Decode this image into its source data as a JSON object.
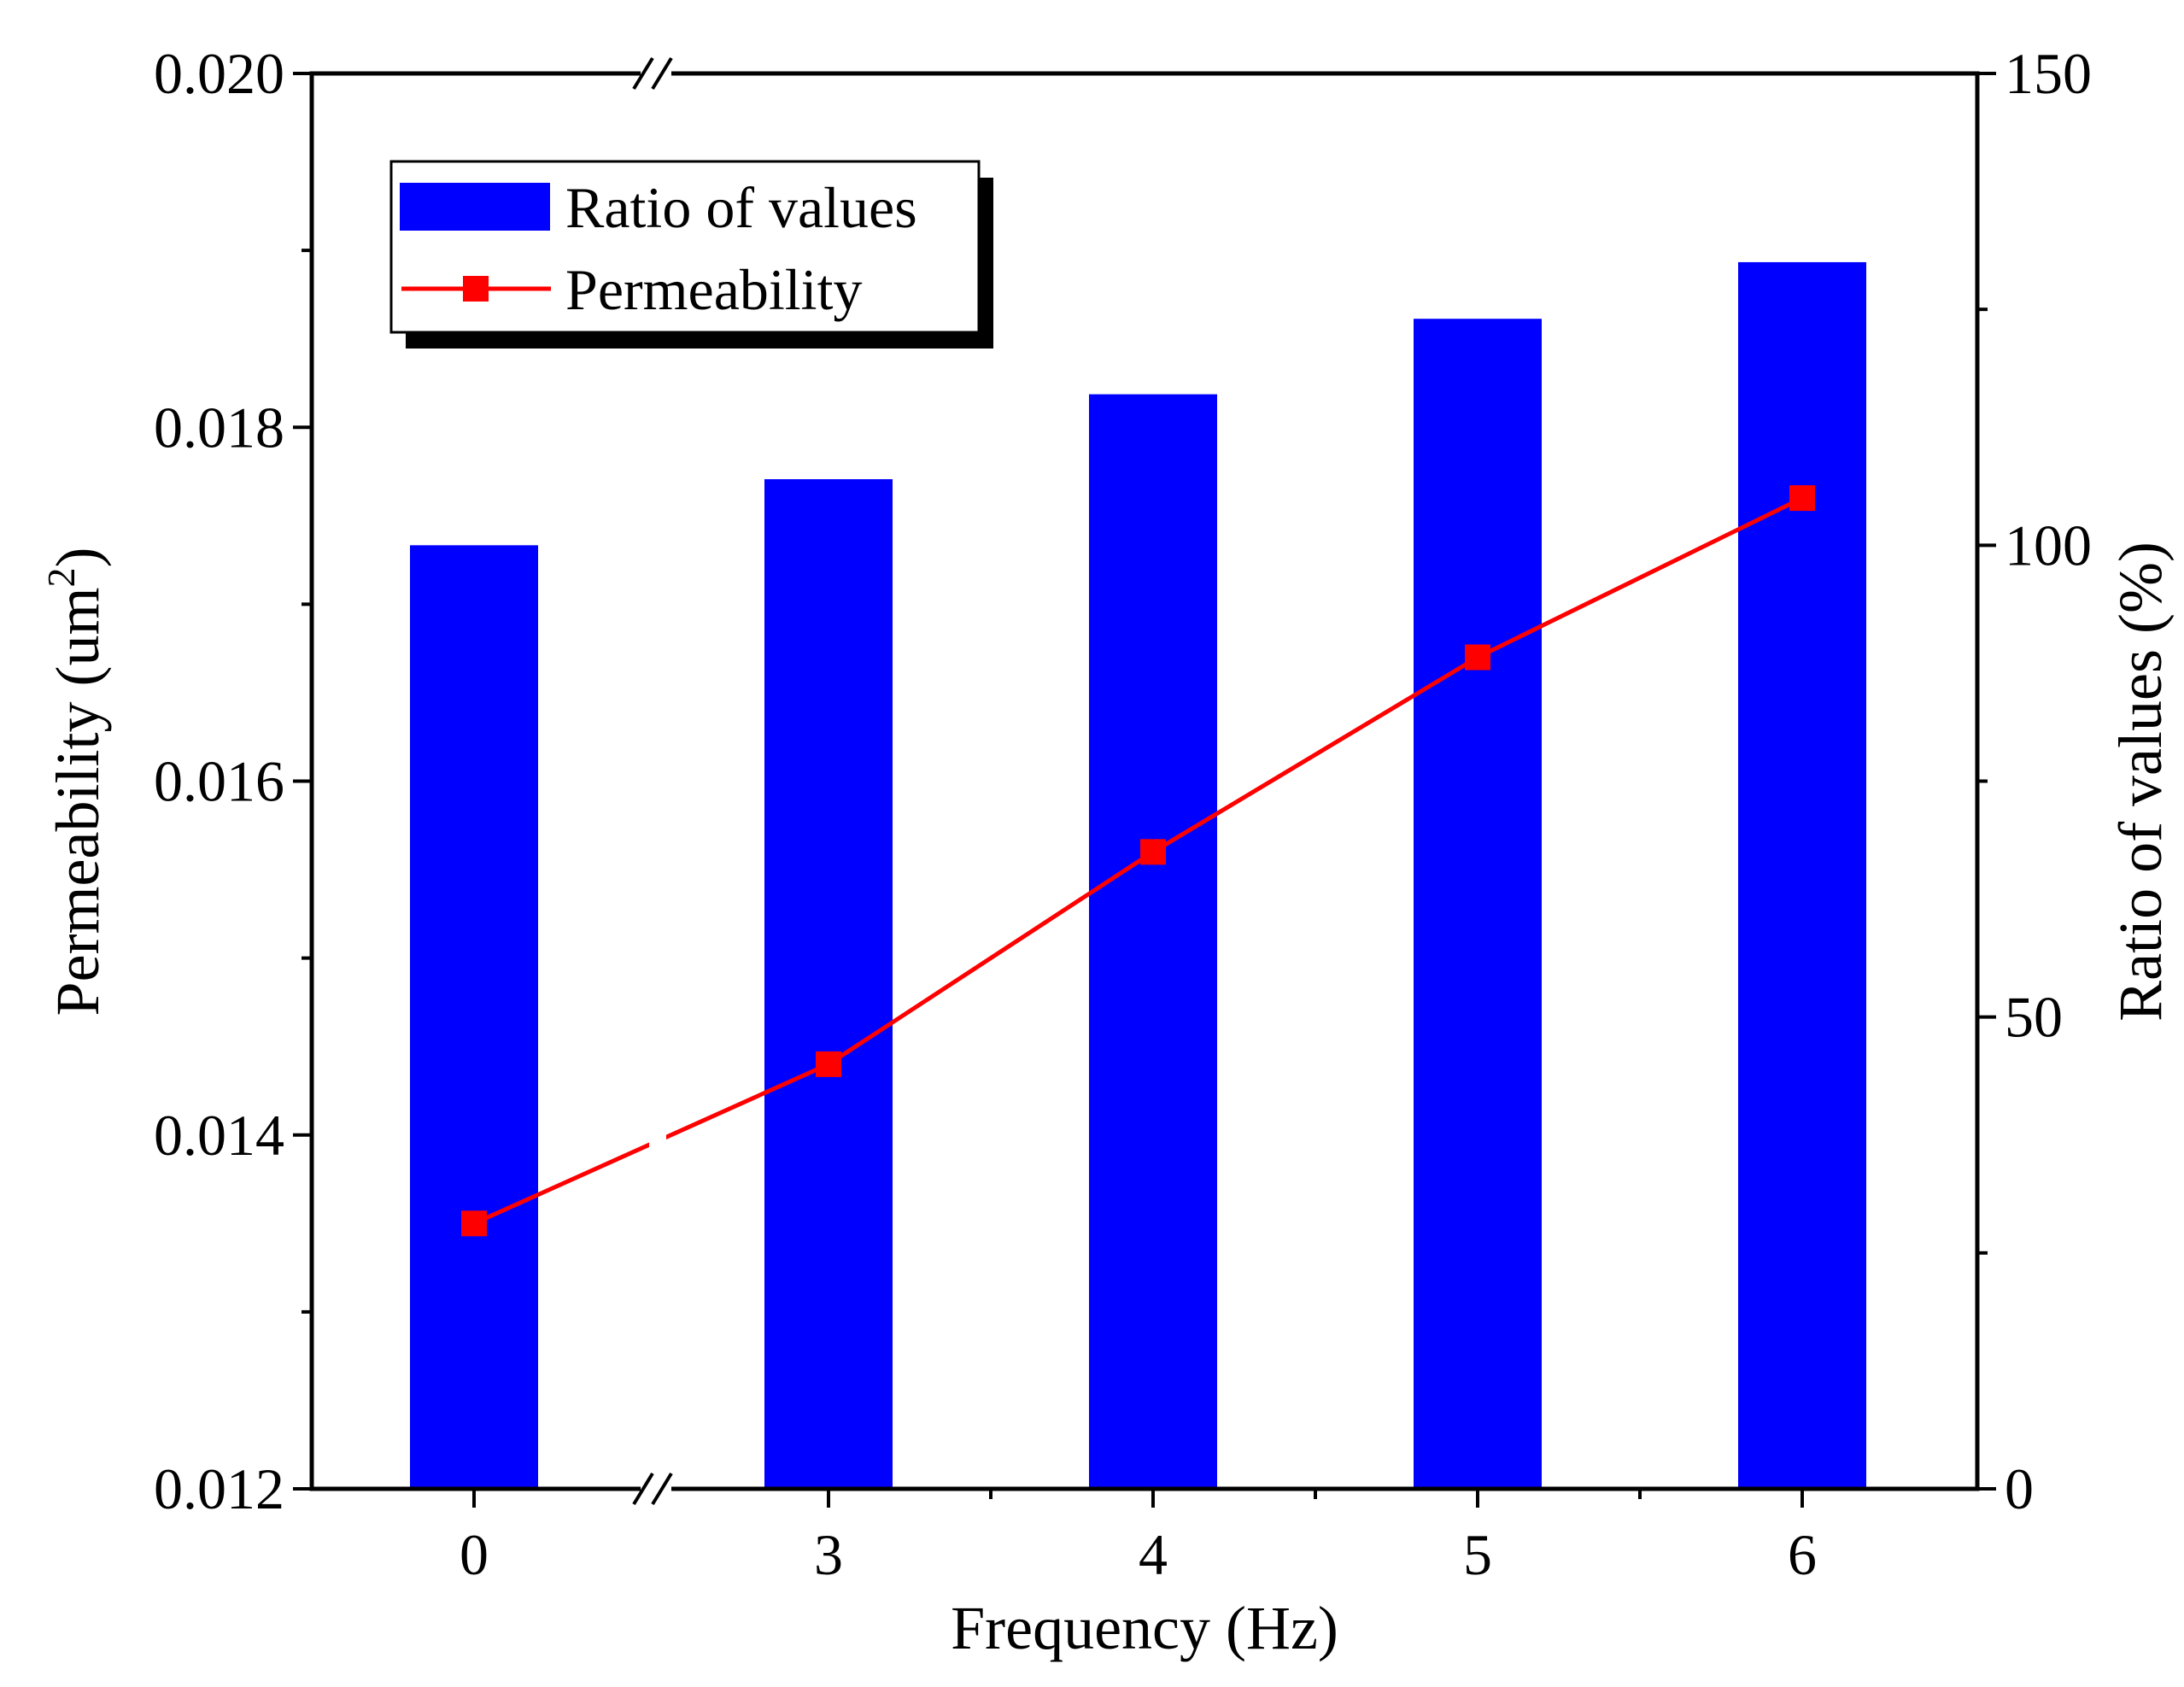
{
  "chart_data": {
    "type": "bar",
    "categories": [
      "0",
      "3",
      "4",
      "5",
      "6"
    ],
    "xlabel": "Frequency (Hz)",
    "ylabel_left": "Permeability (um",
    "ylabel_left_sup": "2",
    "ylabel_left_end": ")",
    "ylabel_right": "Ratio of values (%)",
    "ylim_left": [
      0.012,
      0.02
    ],
    "yticks_left": [
      "0.012",
      "0.014",
      "0.016",
      "0.018",
      "0.020"
    ],
    "ylim_right": [
      0,
      150
    ],
    "yticks_right": [
      "0",
      "50",
      "100",
      "150"
    ],
    "x_axis_break": true,
    "legend_position": "top-left",
    "series": [
      {
        "name": "Ratio of values",
        "type": "bar",
        "axis": "right",
        "color": "#0000FF",
        "values": [
          100,
          107,
          116,
          124,
          130
        ]
      },
      {
        "name": "Permeability",
        "type": "line",
        "axis": "left",
        "color": "#FF0000",
        "marker": "square",
        "values": [
          0.0135,
          0.0144,
          0.0156,
          0.0167,
          0.0176
        ]
      }
    ]
  }
}
